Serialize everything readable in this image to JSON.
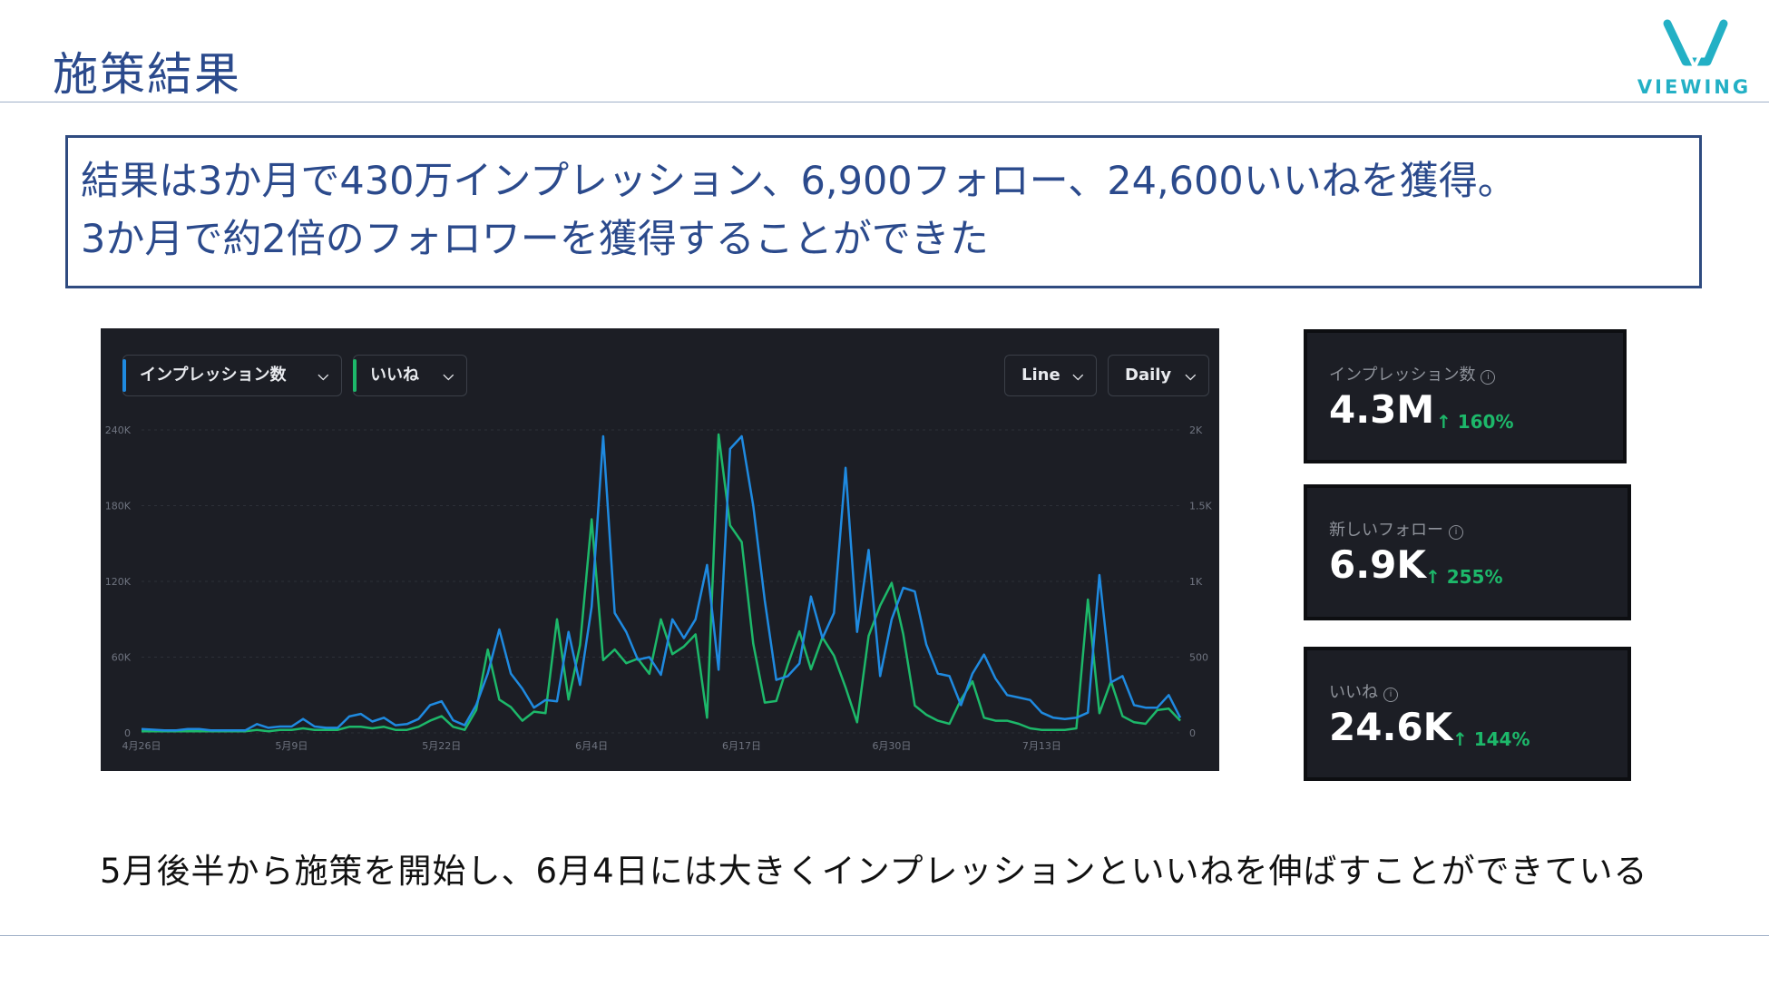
{
  "slide": {
    "title": "施策結果",
    "logo_text": "VIEWING",
    "summary_line1": "結果は3か月で430万インプレッション、6,900フォロー、24,600いいねを獲得。",
    "summary_line2": "3か月で約2倍のフォロワーを獲得することができた",
    "caption": "5月後半から施策を開始し、6月4日には大きくインプレッションといいねを伸ばすことができている",
    "colors": {
      "title": "#2b4a8c",
      "logo": "#23b0c5",
      "impressions_line": "#1f8ae0",
      "likes_line": "#1db86a",
      "panel_bg": "#1c1e25"
    }
  },
  "chart_controls": {
    "metric1": "インプレッション数",
    "metric2": "いいね",
    "chart_type": "Line",
    "interval": "Daily"
  },
  "chart_data": {
    "type": "line",
    "x_tick_labels": [
      "4月26日",
      "5月9日",
      "5月22日",
      "6月4日",
      "6月17日",
      "6月30日",
      "7月13日"
    ],
    "y_left_ticks": [
      "0",
      "60K",
      "120K",
      "180K",
      "240K"
    ],
    "y_right_ticks": [
      "0",
      "500",
      "1K",
      "1.5K",
      "2K"
    ],
    "ylim_left": [
      0,
      240000
    ],
    "ylim_right": [
      0,
      2000
    ],
    "start_date": "4月26日",
    "series": [
      {
        "name": "インプレッション数",
        "axis": "left",
        "color": "#1f8ae0",
        "values": [
          3000,
          2500,
          2000,
          2000,
          3000,
          3000,
          2000,
          2000,
          2000,
          2000,
          7000,
          4000,
          5000,
          5000,
          11000,
          5000,
          4000,
          4000,
          13000,
          15000,
          9000,
          12000,
          6000,
          7000,
          11000,
          22000,
          25000,
          10000,
          6000,
          22000,
          47000,
          82000,
          47000,
          35000,
          20000,
          26000,
          25000,
          80000,
          38000,
          100000,
          235000,
          95000,
          80000,
          58000,
          60000,
          46000,
          90000,
          75000,
          90000,
          133000,
          50000,
          225000,
          235000,
          180000,
          105000,
          42000,
          45000,
          55000,
          108000,
          75000,
          95000,
          210000,
          80000,
          145000,
          45000,
          90000,
          115000,
          112000,
          70000,
          47000,
          45000,
          22000,
          47000,
          62000,
          43000,
          30000,
          28000,
          26000,
          16000,
          12000,
          11000,
          12000,
          16000,
          125000,
          40000,
          45000,
          22000,
          20000,
          20000,
          30000,
          12000
        ]
      },
      {
        "name": "いいね",
        "axis": "right",
        "color": "#1db86a",
        "values": [
          10,
          10,
          10,
          10,
          10,
          10,
          10,
          10,
          10,
          10,
          20,
          10,
          20,
          20,
          30,
          20,
          20,
          20,
          40,
          40,
          30,
          40,
          20,
          20,
          40,
          80,
          110,
          40,
          20,
          150,
          550,
          220,
          170,
          80,
          140,
          130,
          750,
          220,
          580,
          1410,
          480,
          550,
          460,
          490,
          390,
          750,
          520,
          570,
          650,
          100,
          1970,
          1370,
          1260,
          590,
          200,
          210,
          450,
          670,
          420,
          630,
          510,
          300,
          70,
          640,
          840,
          990,
          650,
          180,
          120,
          80,
          60,
          220,
          340,
          100,
          80,
          80,
          60,
          30,
          20,
          20,
          20,
          30,
          880,
          130,
          340,
          110,
          70,
          60,
          150,
          160,
          80
        ]
      }
    ]
  },
  "stats": [
    {
      "label": "インプレッション数",
      "value": "4.3M",
      "change": "↑ 160%"
    },
    {
      "label": "新しいフォロー",
      "value": "6.9K",
      "change": "↑ 255%"
    },
    {
      "label": "いいね",
      "value": "24.6K",
      "change": "↑ 144%"
    }
  ]
}
